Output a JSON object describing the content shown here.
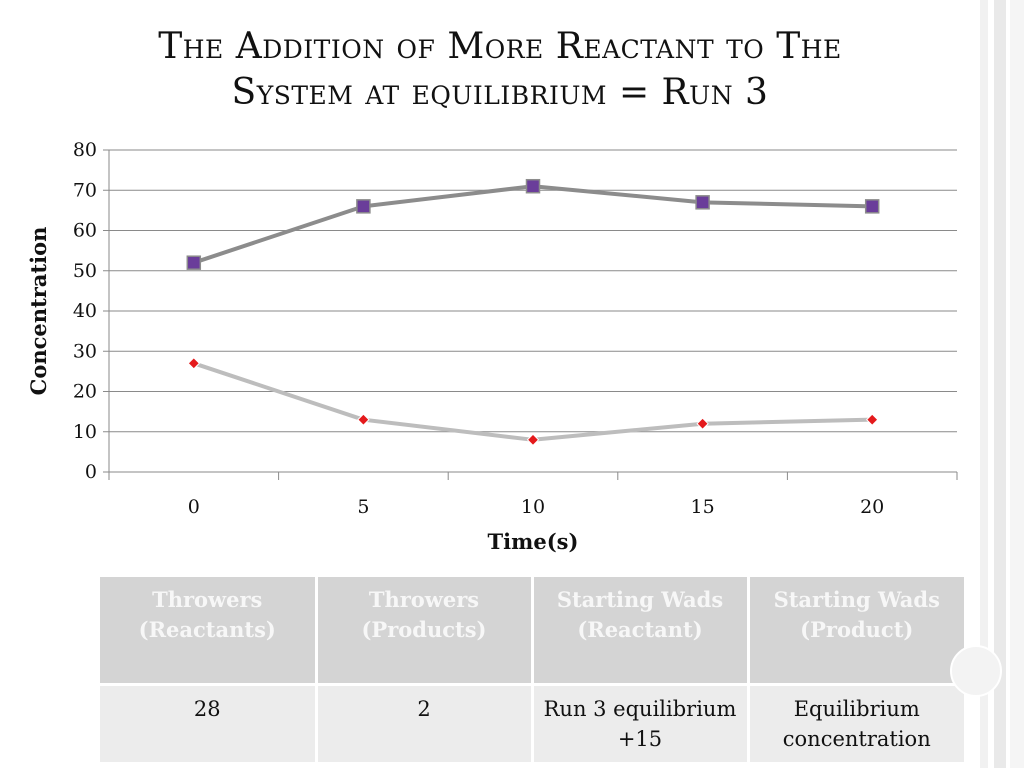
{
  "slide": {
    "title_lines": [
      "The Addition of More Reactant to The",
      "System at equilibrium = Run 3"
    ]
  },
  "chart_data": {
    "type": "line",
    "title": "",
    "xlabel": "Time(s)",
    "ylabel": "Concentration",
    "categories": [
      "0",
      "5",
      "10",
      "15",
      "20"
    ],
    "ylim": [
      0,
      80
    ],
    "yticks": [
      "0",
      "10",
      "20",
      "30",
      "40",
      "50",
      "60",
      "70",
      "80"
    ],
    "grid": true,
    "legend": "none",
    "series": [
      {
        "values": [
          52,
          66,
          71,
          67,
          66
        ],
        "line_color": "#8c8c8c",
        "marker": "square",
        "marker_color": "#6a3d9a"
      },
      {
        "values": [
          27,
          13,
          8,
          12,
          13
        ],
        "line_color": "#bdbdbd",
        "marker": "diamond",
        "marker_color": "#e41a1c"
      }
    ]
  },
  "table": {
    "headers": [
      [
        "Throwers",
        "(Reactants)"
      ],
      [
        "Throwers",
        "(Products)"
      ],
      [
        "Starting Wads",
        "(Reactant)"
      ],
      [
        "Starting Wads",
        "(Product)"
      ]
    ],
    "rows": [
      [
        [
          "28"
        ],
        [
          "2"
        ],
        [
          "Run 3 equilibrium",
          "+15"
        ],
        [
          "Equilibrium",
          "concentration"
        ]
      ]
    ]
  }
}
